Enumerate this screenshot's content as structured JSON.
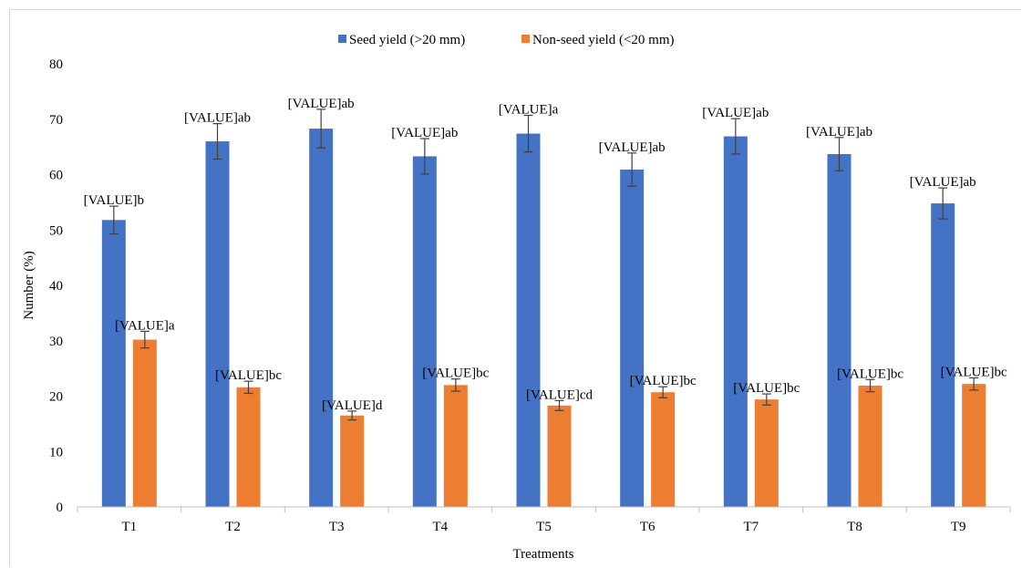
{
  "chart_data": {
    "type": "bar",
    "categories": [
      "T1",
      "T2",
      "T3",
      "T4",
      "T5",
      "T6",
      "T7",
      "T8",
      "T9"
    ],
    "series": [
      {
        "name": "Seed yield (>20 mm)",
        "color": "#4472C4",
        "values": [
          51.8,
          66.0,
          68.3,
          63.3,
          67.4,
          60.9,
          66.9,
          63.7,
          54.8
        ],
        "errors": [
          2.5,
          3.2,
          3.5,
          3.2,
          3.3,
          3.0,
          3.2,
          3.0,
          2.8
        ],
        "labels": [
          "[VALUE]b",
          "[VALUE]ab",
          "[VALUE]ab",
          "[VALUE]ab",
          "[VALUE]a",
          "[VALUE]ab",
          "[VALUE]ab",
          "[VALUE]ab",
          "[VALUE]ab"
        ]
      },
      {
        "name": "Non-seed yield (<20 mm)",
        "color": "#ED7D31",
        "values": [
          30.2,
          21.6,
          16.5,
          22.0,
          18.3,
          20.7,
          19.4,
          21.9,
          22.2
        ],
        "errors": [
          1.5,
          1.1,
          0.8,
          1.1,
          0.9,
          1.0,
          1.0,
          1.1,
          1.1
        ],
        "labels": [
          "[VALUE]a",
          "[VALUE]bc",
          "[VALUE]d",
          "[VALUE]bc",
          "[VALUE]cd",
          "[VALUE]bc",
          "[VALUE]bc",
          "[VALUE]bc",
          "[VALUE]bc"
        ]
      }
    ],
    "title": "",
    "xlabel": "Treatments",
    "ylabel": "Number (%)",
    "ylim": [
      0,
      80
    ],
    "yticks": [
      "0",
      "10",
      "20",
      "30",
      "40",
      "50",
      "60",
      "70",
      "80"
    ],
    "grid": false,
    "legend_position": "top"
  }
}
